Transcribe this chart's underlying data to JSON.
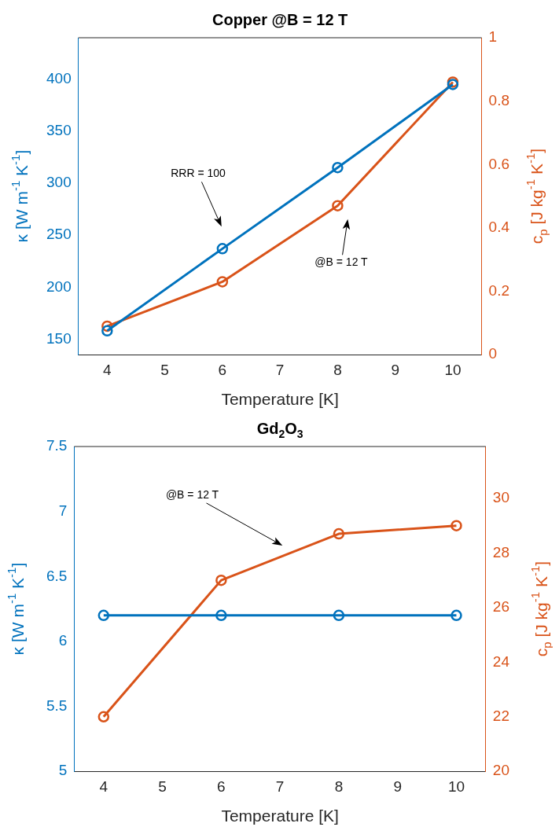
{
  "chart_data": [
    {
      "type": "line",
      "title": "Copper @B = 12 T",
      "xlabel": "Temperature [K]",
      "ylabel": "κ [W m$^{-1}$ K$^{-1}$]",
      "y2label": "c$_{p}$ [J kg$^{-1}$ K$^{-1}$]",
      "x": [
        4,
        6,
        8,
        10
      ],
      "xlim": [
        3.5,
        10.5
      ],
      "xticks": [
        4,
        5,
        6,
        7,
        8,
        9,
        10
      ],
      "ylim": [
        135,
        440
      ],
      "yticks": [
        150,
        200,
        250,
        300,
        350,
        400
      ],
      "y2lim": [
        0,
        1
      ],
      "y2ticks": [
        0,
        0.2,
        0.4,
        0.6,
        0.8,
        1
      ],
      "marker": "circle",
      "grid": false,
      "legend": false,
      "series": [
        {
          "color": "#0072bd",
          "values": [
            158,
            237,
            315,
            395
          ]
        },
        {
          "color": "#d95319",
          "values": [
            0.09,
            0.23,
            0.47,
            0.86
          ],
          "axis": "y2"
        }
      ],
      "annotations": [
        "RRR = 100",
        "@B = 12 T"
      ]
    },
    {
      "type": "line",
      "title": "Gd$_{2}$O$_{3}$",
      "xlabel": "Temperature [K]",
      "ylabel": "κ [W m$^{-1}$ K$^{-1}$]",
      "y2label": "c$_{p}$ [J kg$^{-1}$ K$^{-1}$]",
      "x": [
        4,
        6,
        8,
        10
      ],
      "xlim": [
        3.5,
        10.5
      ],
      "xticks": [
        4,
        5,
        6,
        7,
        8,
        9,
        10
      ],
      "ylim": [
        5,
        7.5
      ],
      "yticks": [
        5,
        5.5,
        6,
        6.5,
        7,
        7.5
      ],
      "y2lim": [
        20,
        31.9
      ],
      "y2ticks": [
        20,
        22,
        24,
        26,
        28,
        30
      ],
      "marker": "circle",
      "grid": false,
      "legend": false,
      "series": [
        {
          "color": "#0072bd",
          "values": [
            6.2,
            6.2,
            6.2,
            6.2
          ]
        },
        {
          "color": "#d95319",
          "values": [
            22,
            27,
            28.7,
            29
          ],
          "axis": "y2"
        }
      ],
      "annotations": [
        "@B = 12 T"
      ]
    }
  ]
}
